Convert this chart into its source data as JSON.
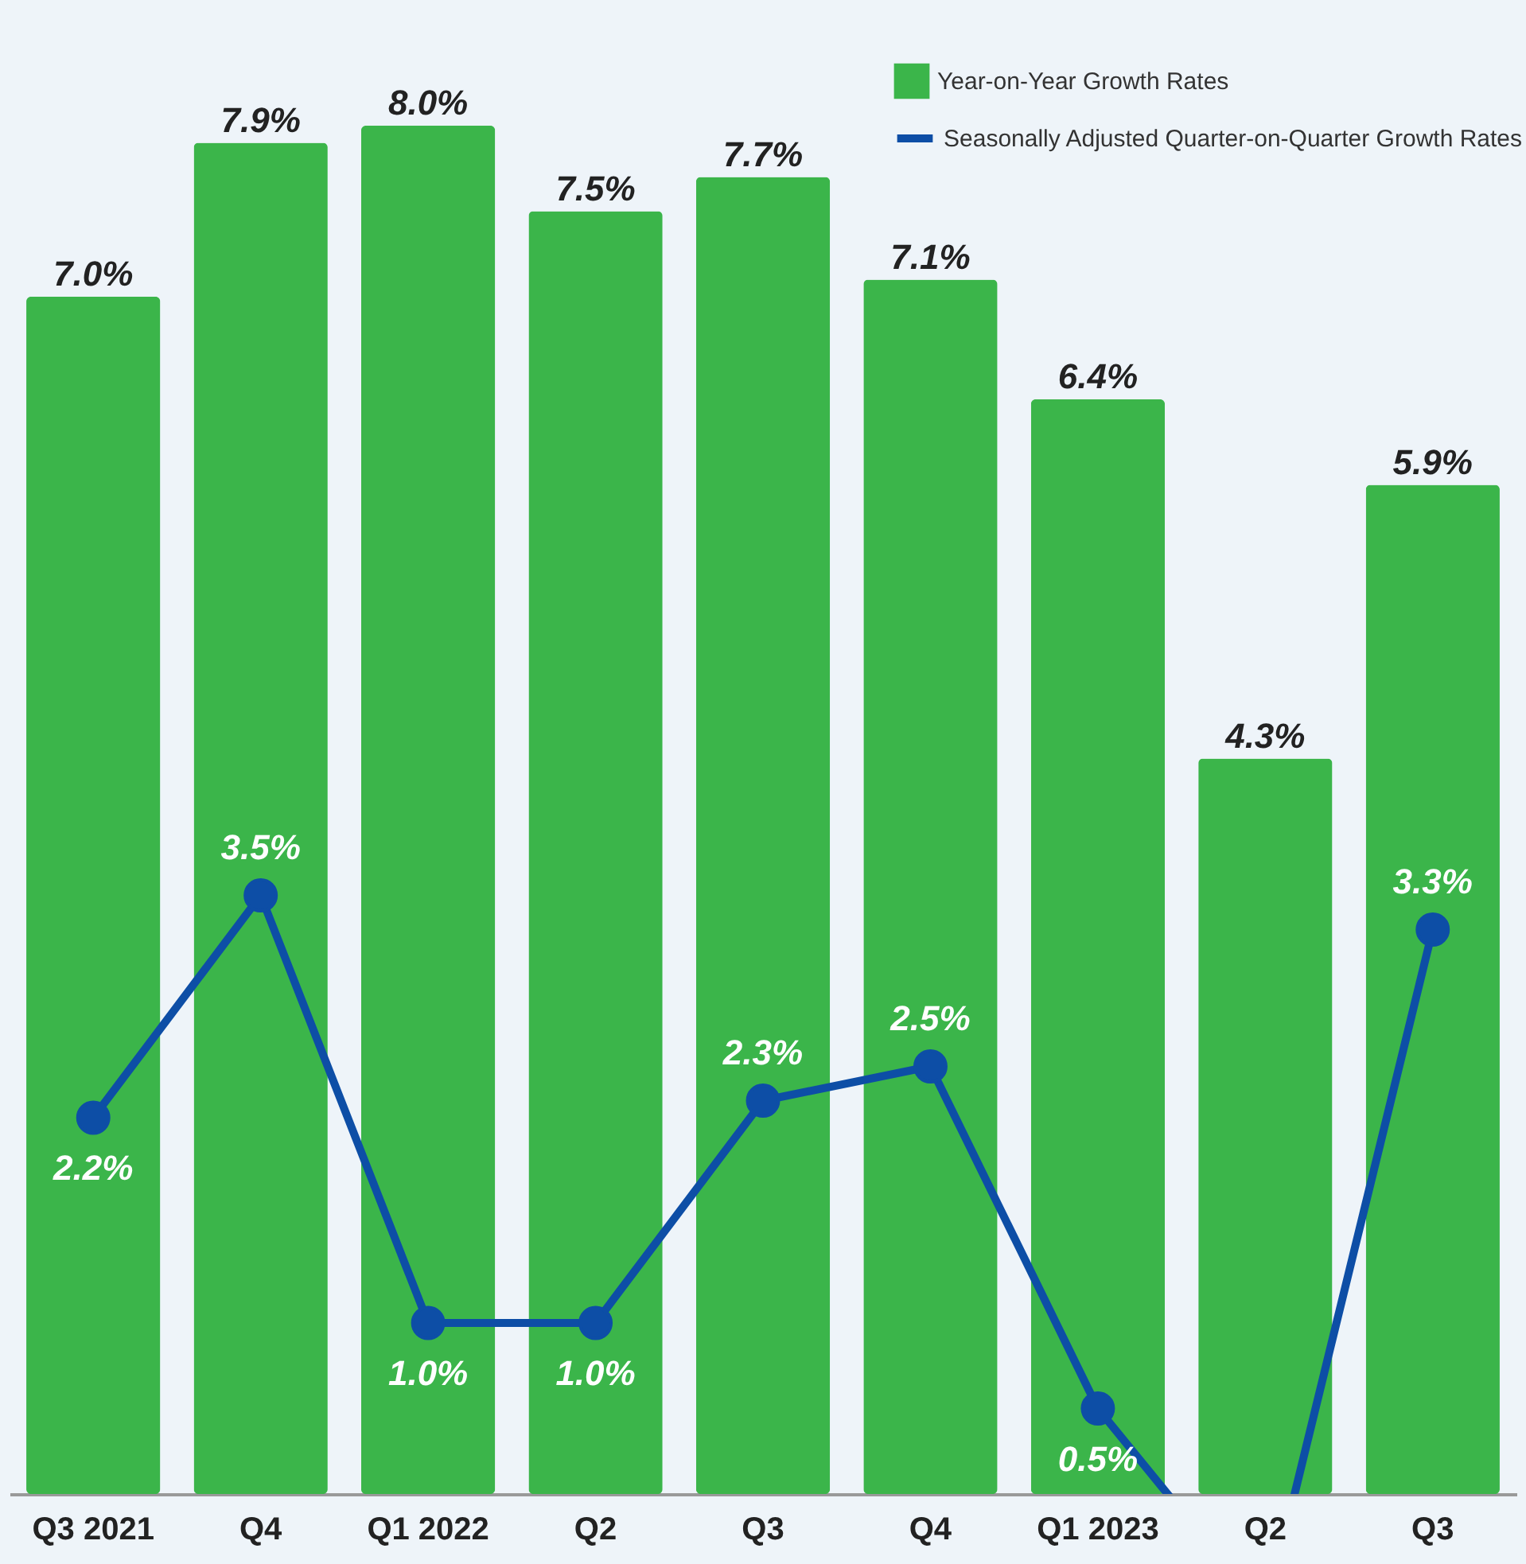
{
  "chart_data": {
    "type": "bar",
    "categories": [
      "Q3 2021",
      "Q4",
      "Q1 2022",
      "Q2",
      "Q3",
      "Q4",
      "Q1 2023",
      "Q2",
      "Q3"
    ],
    "series": [
      {
        "name": "Year-on-Year Growth Rates",
        "color": "#3bb54a",
        "values": [
          7.0,
          7.9,
          8.0,
          7.5,
          7.7,
          7.1,
          6.4,
          4.3,
          5.9
        ],
        "value_labels": [
          "7.0%",
          "7.9%",
          "8.0%",
          "7.5%",
          "7.7%",
          "7.1%",
          "6.4%",
          "4.3%",
          "5.9%"
        ]
      },
      {
        "name": "Seasonally Adjusted Quarter-on-Quarter Growth Rates",
        "type": "line",
        "color": "#0d4ea6",
        "values": [
          2.2,
          3.5,
          1.0,
          1.0,
          2.3,
          2.5,
          0.5,
          -0.7,
          3.3
        ],
        "value_labels": [
          "2.2%",
          "3.5%",
          "1.0%",
          "1.0%",
          "2.3%",
          "2.5%",
          "0.5%",
          null,
          "3.3%"
        ]
      }
    ],
    "marker": "circle",
    "legend": "top right"
  }
}
